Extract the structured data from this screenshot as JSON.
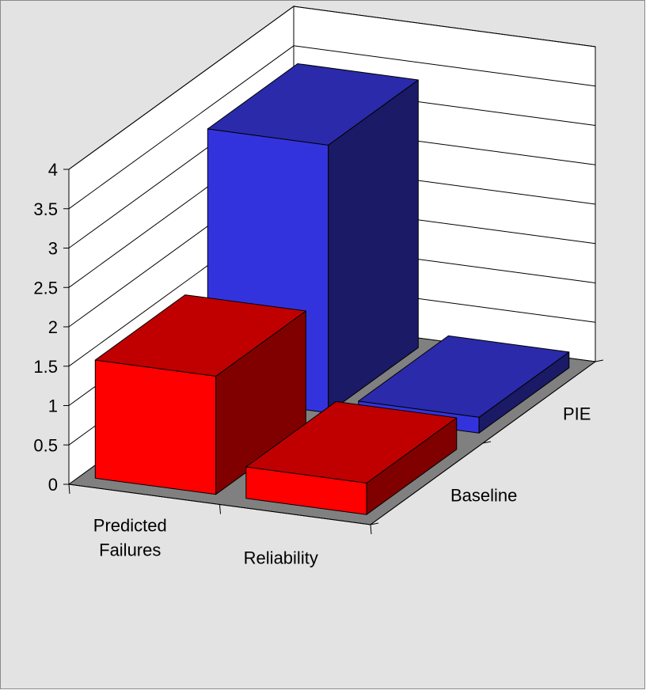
{
  "chart_data": {
    "type": "bar",
    "subtype": "3d-column",
    "title": "",
    "xlabel": "",
    "ylabel": "",
    "categories": [
      "Predicted Failures",
      "Reliability"
    ],
    "category_lines": [
      [
        "Predicted",
        "Failures"
      ],
      [
        "Reliability"
      ]
    ],
    "series": [
      {
        "name": "Baseline",
        "values": [
          1.5,
          0.4
        ]
      },
      {
        "name": "PIE",
        "values": [
          3.4,
          0.2
        ]
      }
    ],
    "ylim": [
      0,
      4
    ],
    "yticks": [
      "0",
      "0.5",
      "1",
      "1.5",
      "2",
      "2.5",
      "3",
      "3.5",
      "4"
    ],
    "grid": true,
    "legend": "none",
    "colors": {
      "background": "#e3e3e3",
      "border": "#8a8a8a",
      "wall": "#ffffff",
      "floor": "#808080",
      "Baseline_front": "#ff0000",
      "Baseline_side": "#800000",
      "Baseline_top": "#c00000",
      "PIE_front": "#3333dd",
      "PIE_side": "#1a1a66",
      "PIE_top": "#2a2aaa"
    }
  }
}
